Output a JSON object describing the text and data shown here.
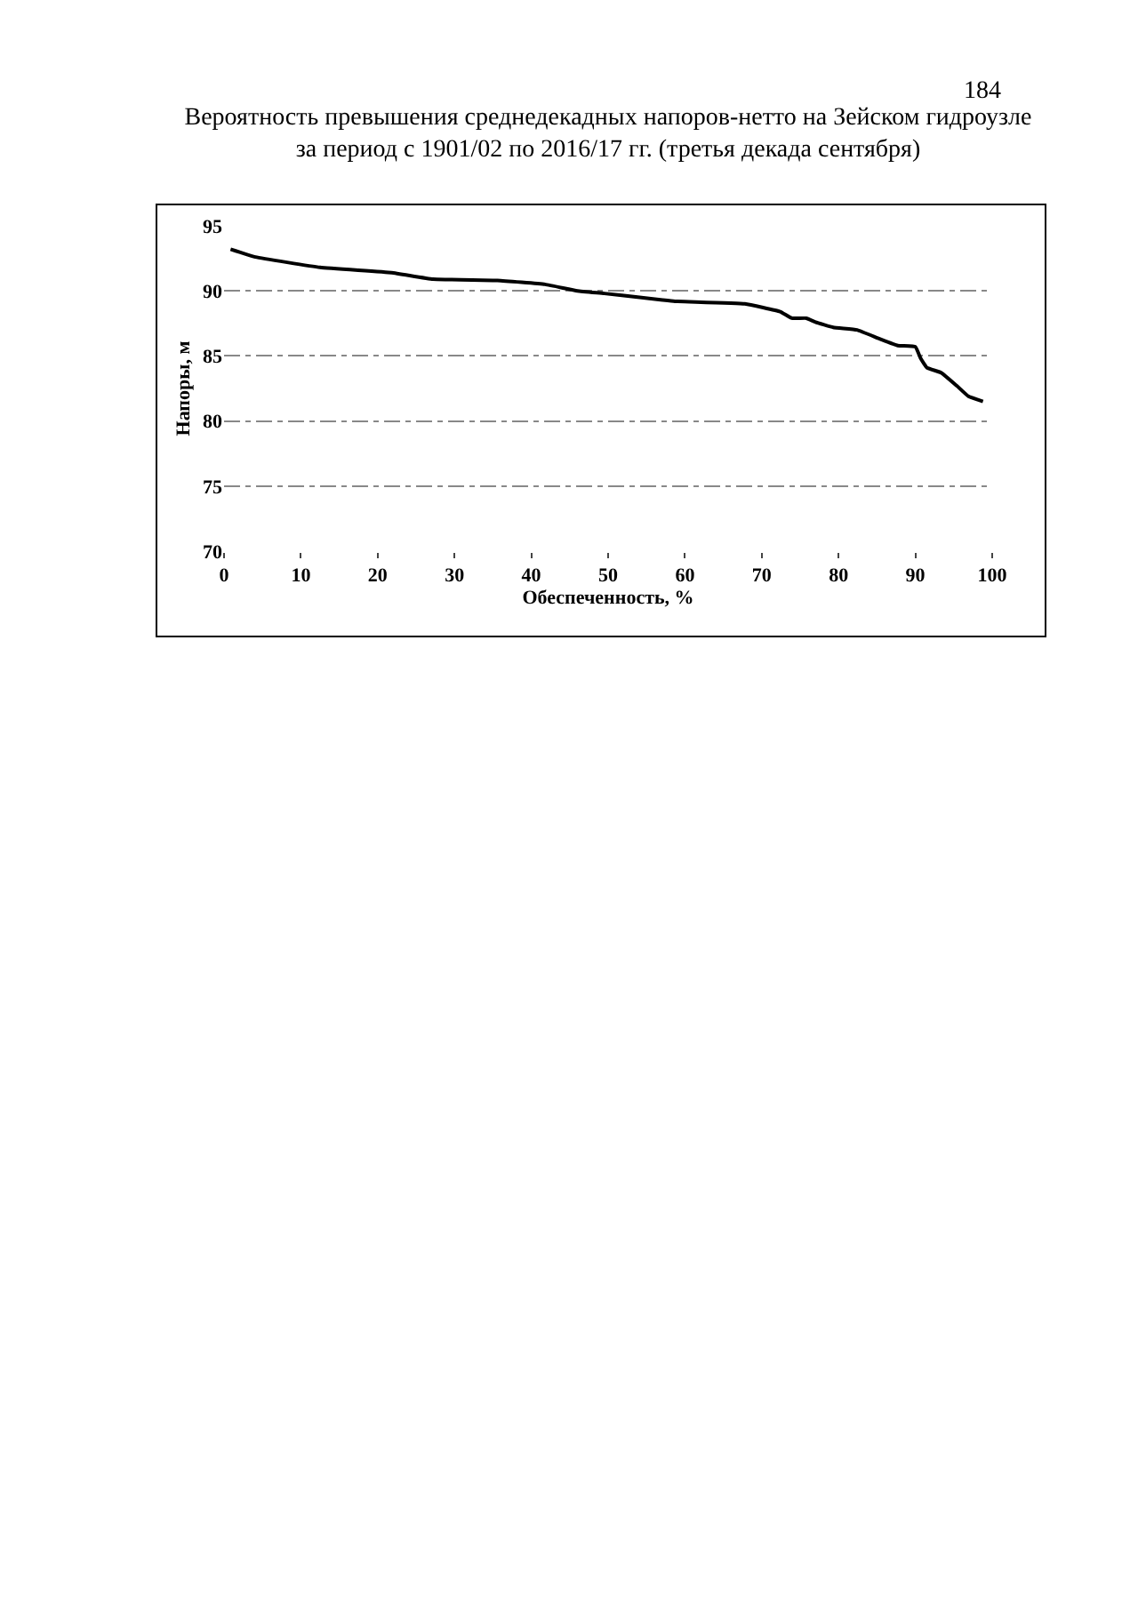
{
  "chart_data": {
    "type": "line",
    "title": "Вероятность превышения среднедекадных напоров-нетто на Зейском гидроузле\nза период с 1901/02 по 2016/17 гг. (третья декада сентября)",
    "xlabel": "Обеспеченность, %",
    "ylabel": "Напоры, м",
    "annotations": [
      "184"
    ],
    "x": [
      0.85,
      4.1,
      12.5,
      21.8,
      27.2,
      35.6,
      41.8,
      46,
      49.5,
      54.1,
      57.1,
      58.7,
      67.8,
      72.4,
      73.9,
      75.8,
      77,
      79.3,
      82.4,
      85.4,
      87.7,
      90,
      90.7,
      91.5,
      93.4,
      95.4,
      96.9,
      98.8
    ],
    "series": [
      {
        "color": "#000000",
        "values": [
          93.2,
          92.6,
          91.8,
          91.4,
          90.9,
          90.8,
          90.5,
          90,
          89.8,
          89.5,
          89.3,
          89.2,
          89.0,
          88.4,
          87.9,
          87.9,
          87.6,
          87.2,
          87.0,
          86.3,
          85.8,
          85.7,
          84.8,
          84.1,
          83.7,
          82.7,
          81.9,
          81.5
        ]
      }
    ],
    "xlim": [
      0,
      100
    ],
    "xticks": [
      0,
      10,
      20,
      30,
      40,
      50,
      60,
      70,
      80,
      90,
      100
    ],
    "ylim": [
      70,
      95
    ],
    "yticks": [
      70,
      75,
      80,
      85,
      90,
      95
    ],
    "grid": "y",
    "marker": "none",
    "line_style": "solid"
  }
}
